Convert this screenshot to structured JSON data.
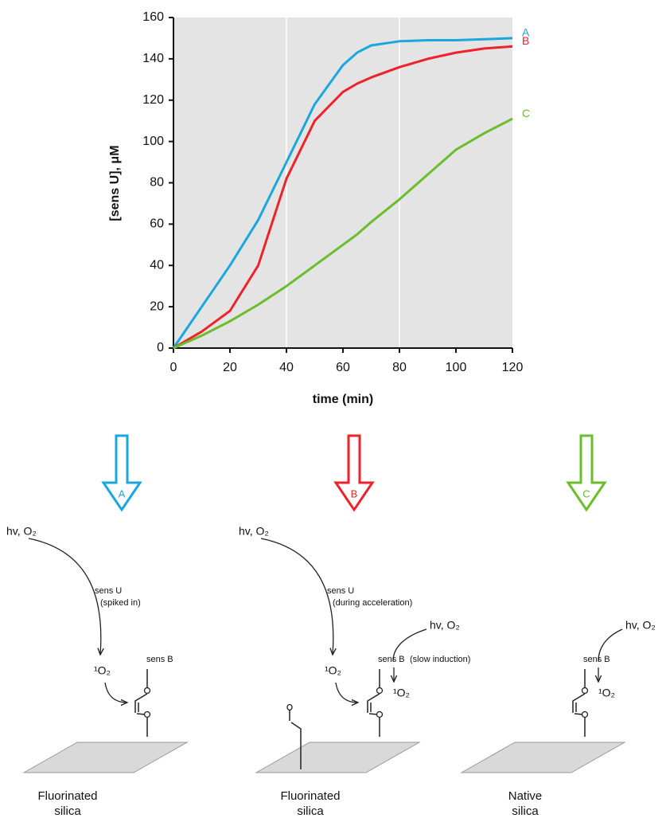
{
  "chart_data": {
    "type": "line",
    "xlabel": "time (min)",
    "ylabel": "[sens U], μM",
    "x": [
      0,
      10,
      20,
      30,
      40,
      50,
      60,
      65,
      70,
      80,
      90,
      100,
      110,
      120
    ],
    "series": [
      {
        "name": "A",
        "color": "#1aa7de",
        "values": [
          0,
          20,
          40,
          62,
          90,
          118,
          137,
          143,
          146.5,
          148.5,
          149,
          149,
          149.5,
          150
        ]
      },
      {
        "name": "B",
        "color": "#ee2229",
        "values": [
          0,
          8,
          18,
          40,
          82,
          110,
          124,
          128,
          131,
          136,
          140,
          143,
          145,
          146
        ]
      },
      {
        "name": "C",
        "color": "#6abd2b",
        "values": [
          0,
          6,
          13,
          21,
          30,
          40,
          50,
          55,
          61,
          72,
          84,
          96,
          104,
          111
        ]
      }
    ],
    "xlim": [
      0,
      120
    ],
    "ylim": [
      0,
      160
    ],
    "xticks": [
      0,
      20,
      40,
      60,
      80,
      100,
      120
    ],
    "yticks": [
      0,
      20,
      40,
      60,
      80,
      100,
      120,
      140,
      160
    ],
    "vertical_grid": [
      40,
      80
    ],
    "background": "#e4e4e4"
  },
  "diagram": {
    "panels": [
      {
        "light": "hv, O₂",
        "sensitizer": "sens U",
        "note": "(spiked in)",
        "oxygen": "¹O₂",
        "bound": "sens B",
        "surface": [
          "Fluorinated",
          "silica"
        ]
      },
      {
        "light": "hv, O₂",
        "sensitizer": "sens U",
        "note": "(during acceleration)",
        "light2": "hv, O₂",
        "oxygen": "¹O₂",
        "bound": "sens B",
        "bound_note": "(slow induction)",
        "oxygen2": "¹O₂",
        "surface": [
          "Fluorinated",
          "silica"
        ]
      },
      {
        "light": "hv, O₂",
        "bound": "sens B",
        "oxygen": "¹O₂",
        "surface": [
          "Native",
          "silica"
        ]
      }
    ]
  }
}
